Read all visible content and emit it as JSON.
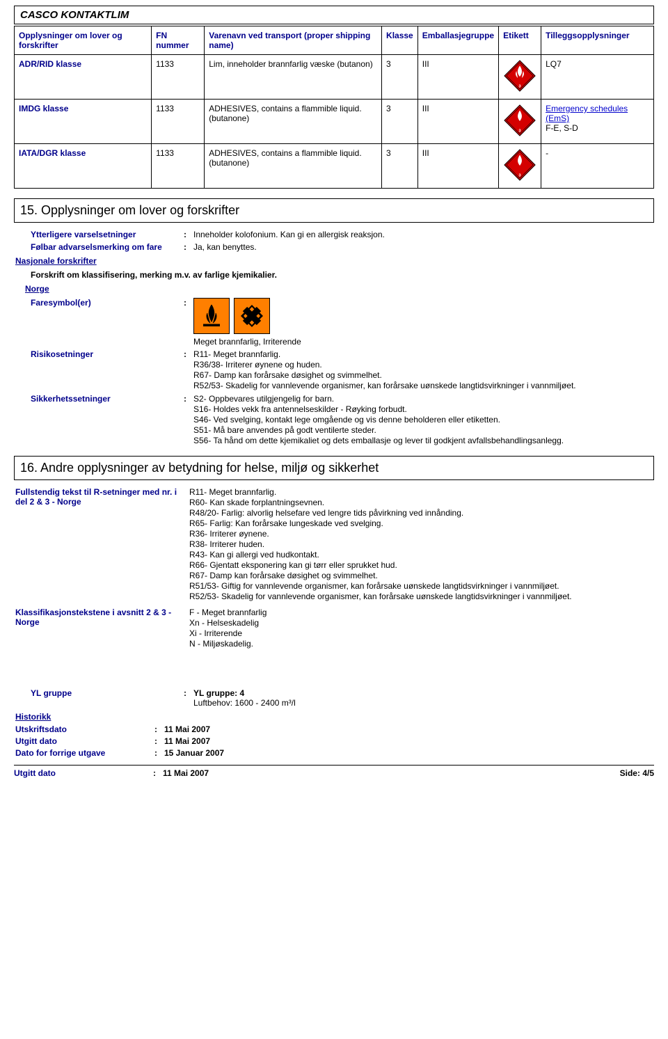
{
  "title": "CASCO KONTAKTLIM",
  "transport": {
    "headers": [
      "Opplysninger om lover og forskrifter",
      "FN nummer",
      "Varenavn ved transport (proper shipping name)",
      "Klasse",
      "Emballasjegruppe",
      "Etikett",
      "Tilleggsopplysninger"
    ],
    "rows": [
      {
        "label": "ADR/RID klasse",
        "fn": "1133",
        "name": "Lim, inneholder brannfarlig væske (butanon)",
        "klasse": "3",
        "pkg": "III",
        "extra": "LQ7",
        "ems": false
      },
      {
        "label": "IMDG klasse",
        "fn": "1133",
        "name": "ADHESIVES, contains a flammible liquid. (butanone)",
        "klasse": "3",
        "pkg": "III",
        "extra_link": "Emergency schedules (EmS)",
        "extra_tail": "F-E, S-D",
        "ems": true
      },
      {
        "label": "IATA/DGR klasse",
        "fn": "1133",
        "name": "ADHESIVES, contains a flammible liquid. (butanone)",
        "klasse": "3",
        "pkg": "III",
        "extra": "-",
        "ems": false
      }
    ]
  },
  "section15": {
    "heading": "15.  Opplysninger om lover og forskrifter",
    "ytterligere_label": "Ytterligere varselsetninger",
    "ytterligere_val": "Inneholder kolofonium. Kan gi en allergisk reaksjon.",
    "folbar_label": "Følbar advarselsmerking om fare",
    "folbar_val": "Ja, kan benyttes.",
    "nasjonale": "Nasjonale forskrifter",
    "forskrift": "Forskrift om klassifisering, merking m.v. av farlige kjemikalier.",
    "norge": "Norge",
    "faresymbol_label": "Faresymbol(er)",
    "picto_caption": "Meget brannfarlig, Irriterende",
    "risiko_label": "Risikosetninger",
    "risiko_lines": [
      "R11- Meget brannfarlig.",
      "R36/38- Irriterer øynene og huden.",
      "R67- Damp kan forårsake døsighet og svimmelhet.",
      "R52/53- Skadelig for vannlevende organismer, kan forårsake uønskede langtidsvirkninger i vannmiljøet."
    ],
    "sikkerhet_label": "Sikkerhetssetninger",
    "sikkerhet_lines": [
      "S2- Oppbevares utilgjengelig for barn.",
      "S16- Holdes vekk fra antennelseskilder - Røyking forbudt.",
      "S46- Ved svelging, kontakt lege omgående og vis denne beholderen eller etiketten.",
      "S51- Må bare anvendes på godt ventilerte steder.",
      "S56- Ta hånd om dette kjemikaliet og dets emballasje og lever til godkjent avfallsbehandlingsanlegg."
    ]
  },
  "section16": {
    "heading": "16.  Andre opplysninger av betydning for helse, miljø og sikkerhet",
    "fullR_label": "Fullstendig tekst til R-setninger med nr. i del 2 & 3 -  Norge",
    "fullR_lines": [
      "R11- Meget brannfarlig.",
      "R60- Kan skade forplantningsevnen.",
      "R48/20- Farlig: alvorlig helsefare ved lengre tids påvirkning ved innånding.",
      "R65- Farlig: Kan forårsake lungeskade ved svelging.",
      "R36- Irriterer øynene.",
      "R38- Irriterer huden.",
      "R43- Kan gi allergi ved hudkontakt.",
      "R66- Gjentatt eksponering kan gi tørr eller sprukket hud.",
      "R67- Damp kan forårsake døsighet og svimmelhet.",
      "R51/53- Giftig for vannlevende organismer, kan forårsake uønskede langtidsvirkninger i vannmiljøet.",
      "R52/53- Skadelig for vannlevende organismer, kan forårsake uønskede langtidsvirkninger i vannmiljøet."
    ],
    "klass_label": "Klassifikasjonstekstene i avsnitt 2 & 3  -  Norge",
    "klass_lines": [
      "F - Meget brannfarlig",
      "Xn - Helseskadelig",
      "Xi - Irriterende",
      "N - Miljøskadelig."
    ],
    "yl_label": "YL gruppe",
    "yl_line1": "YL gruppe: 4",
    "yl_line2": "Luftbehov: 1600 - 2400 m³/l",
    "historikk": "Historikk",
    "utskrift_label": "Utskriftsdato",
    "utskrift_val": "11 Mai 2007",
    "utgitt_label": "Utgitt dato",
    "utgitt_val": "11 Mai 2007",
    "forrige_label": "Dato for forrige utgave",
    "forrige_val": "15 Januar 2007"
  },
  "footer": {
    "label": "Utgitt dato",
    "val": "11 Mai 2007",
    "page": "Side: 4/5"
  }
}
